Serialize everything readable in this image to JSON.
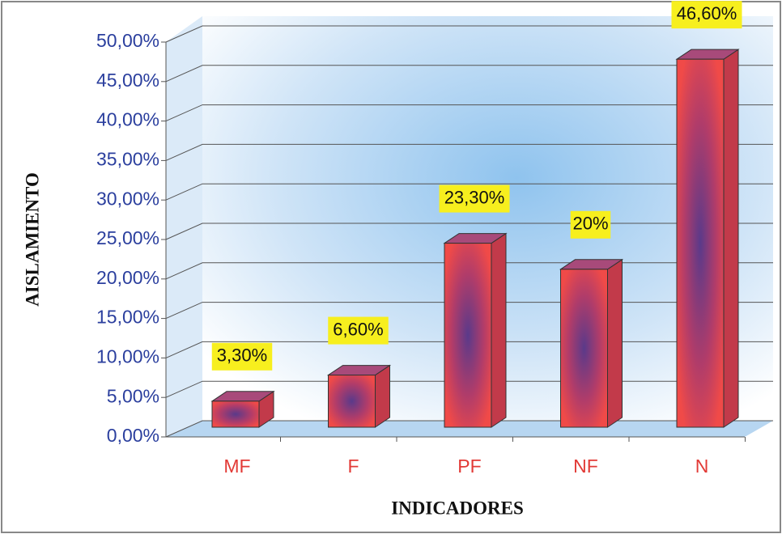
{
  "chart_data": {
    "type": "bar3d",
    "categories": [
      "MF",
      "F",
      "PF",
      "NF",
      "N"
    ],
    "values": [
      3.3,
      6.6,
      23.3,
      20,
      46.6
    ],
    "value_labels": [
      "3,30%",
      "6,60%",
      "23,30%",
      "20%",
      "46,60%"
    ],
    "color": "#e8424a",
    "ylim": [
      0,
      50
    ],
    "yticks": [
      {
        "value": 0,
        "label": "0,00%"
      },
      {
        "value": 5,
        "label": "5,00%"
      },
      {
        "value": 10,
        "label": "10,00%"
      },
      {
        "value": 15,
        "label": "15,00%"
      },
      {
        "value": 20,
        "label": "20,00%"
      },
      {
        "value": 25,
        "label": "25,00%"
      },
      {
        "value": 30,
        "label": "30,00%"
      },
      {
        "value": 35,
        "label": "35,00%"
      },
      {
        "value": 40,
        "label": "40,00%"
      },
      {
        "value": 45,
        "label": "45,00%"
      },
      {
        "value": 50,
        "label": "50,00%"
      }
    ],
    "y_label": "AISLAMIENTO",
    "x_label": "INDICADORES",
    "grid": true
  }
}
